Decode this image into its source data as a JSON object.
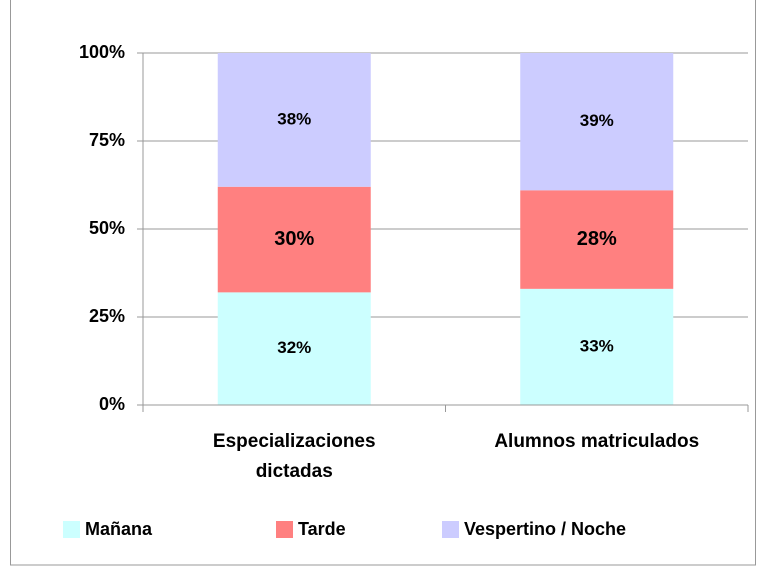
{
  "chart_data": {
    "type": "stacked_bar",
    "categories": [
      "Especializaciones dictadas",
      "Alumnos matriculados"
    ],
    "series": [
      {
        "name": "Mañana",
        "color": "#ccffff",
        "values": [
          32,
          33
        ],
        "value_labels": [
          "32%",
          "33%"
        ]
      },
      {
        "name": "Tarde",
        "color": "#ff8080",
        "values": [
          30,
          28
        ],
        "value_labels": [
          "30%",
          "28%"
        ]
      },
      {
        "name": "Vespertino / Noche",
        "color": "#ccccff",
        "values": [
          38,
          39
        ],
        "value_labels": [
          "38%",
          "39%"
        ]
      }
    ],
    "ylim": [
      0,
      100
    ],
    "yticks": [
      {
        "value": 0,
        "label": "0%"
      },
      {
        "value": 25,
        "label": "25%"
      },
      {
        "value": 50,
        "label": "50%"
      },
      {
        "value": 75,
        "label": "75%"
      },
      {
        "value": 100,
        "label": "100%"
      }
    ],
    "grid": true,
    "legend": "bottom"
  }
}
